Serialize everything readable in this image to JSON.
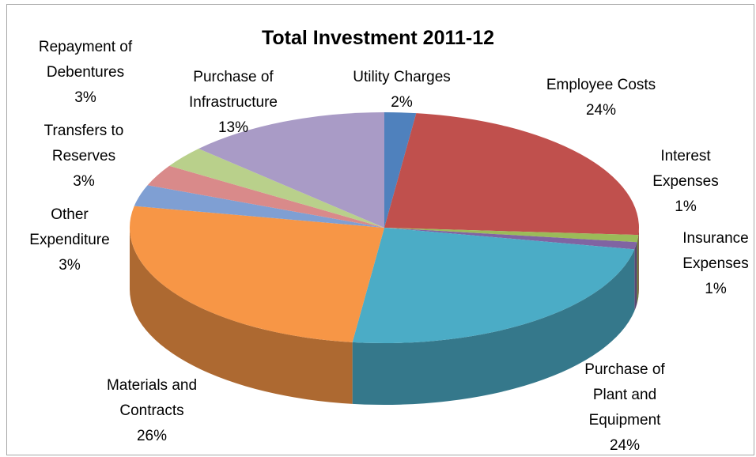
{
  "chart_data": {
    "type": "pie3d",
    "title": "Total Investment 2011-12",
    "categories": [
      "Utility Charges",
      "Employee Costs",
      "Interest Expenses",
      "Insurance Expenses",
      "Purchase of Plant and Equipment",
      "Materials and Contracts",
      "Other Expenditure",
      "Transfers to Reserves",
      "Repayment of Debentures",
      "Purchase of Infrastructure"
    ],
    "values": [
      2,
      24,
      1,
      1,
      24,
      26,
      3,
      3,
      3,
      13
    ],
    "value_labels": [
      "2%",
      "24%",
      "1%",
      "1%",
      "24%",
      "26%",
      "3%",
      "3%",
      "3%",
      "13%"
    ],
    "colors": [
      "#4f81bd",
      "#c0504d",
      "#9bbb59",
      "#8064a2",
      "#4bacc6",
      "#f79646",
      "#7f9fd3",
      "#d98a8a",
      "#b9d08b",
      "#a99bc6"
    ]
  }
}
